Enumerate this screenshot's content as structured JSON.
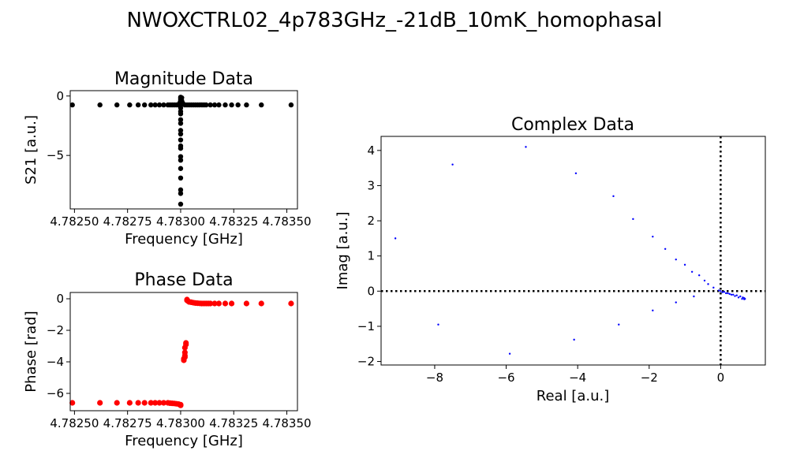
{
  "figure": {
    "title": "NWOXCTRL02_4p783GHz_-21dB_10mK_homophasal"
  },
  "chart_data": [
    {
      "id": "magnitude",
      "type": "scatter",
      "title": "Magnitude Data",
      "xlabel": "Frequency [GHz]",
      "ylabel": "S21 [a.u.]",
      "xlim": [
        4.78248,
        4.78355
      ],
      "ylim": [
        -9.5,
        0.45
      ],
      "xticks": [
        4.7825,
        4.78275,
        4.783,
        4.78325,
        4.7835
      ],
      "xtick_labels": [
        "4.78250",
        "4.78275",
        "4.78300",
        "4.78325",
        "4.78350"
      ],
      "yticks": [
        0,
        -5
      ],
      "ytick_labels": [
        "0",
        "−5"
      ],
      "color": "#000000",
      "grid": false,
      "series": [
        {
          "points": [
            [
              4.78249,
              -0.75
            ],
            [
              4.78262,
              -0.75
            ],
            [
              4.7827,
              -0.75
            ],
            [
              4.78276,
              -0.75
            ],
            [
              4.7828,
              -0.75
            ],
            [
              4.78283,
              -0.75
            ],
            [
              4.78286,
              -0.75
            ],
            [
              4.78288,
              -0.75
            ],
            [
              4.7829,
              -0.75
            ],
            [
              4.78292,
              -0.75
            ],
            [
              4.78294,
              -0.75
            ],
            [
              4.78295,
              -0.75
            ],
            [
              4.78296,
              -0.75
            ],
            [
              4.78297,
              -0.75
            ],
            [
              4.78298,
              -0.75
            ],
            [
              4.78299,
              -0.75
            ],
            [
              4.782995,
              -0.6
            ],
            [
              4.783,
              -0.4
            ],
            [
              4.783,
              -0.1
            ],
            [
              4.783,
              -0.2
            ],
            [
              4.783,
              -0.3
            ],
            [
              4.783,
              -0.5
            ],
            [
              4.783,
              -0.8
            ],
            [
              4.783,
              -1.0
            ],
            [
              4.783,
              -1.3
            ],
            [
              4.783,
              -1.5
            ],
            [
              4.783,
              -2.0
            ],
            [
              4.783,
              -2.3
            ],
            [
              4.783,
              -2.9
            ],
            [
              4.783,
              -3.2
            ],
            [
              4.783,
              -3.7
            ],
            [
              4.783,
              -4.2
            ],
            [
              4.783,
              -4.4
            ],
            [
              4.783,
              -5.1
            ],
            [
              4.783,
              -5.4
            ],
            [
              4.783,
              -6.1
            ],
            [
              4.783,
              -6.9
            ],
            [
              4.783,
              -7.9
            ],
            [
              4.783,
              -8.2
            ],
            [
              4.783,
              -9.1
            ],
            [
              4.783005,
              -0.15
            ],
            [
              4.783005,
              -0.4
            ],
            [
              4.78301,
              -0.6
            ],
            [
              4.78302,
              -0.75
            ],
            [
              4.78303,
              -0.75
            ],
            [
              4.78304,
              -0.75
            ],
            [
              4.78305,
              -0.75
            ],
            [
              4.78306,
              -0.75
            ],
            [
              4.78307,
              -0.75
            ],
            [
              4.78308,
              -0.75
            ],
            [
              4.78309,
              -0.75
            ],
            [
              4.7831,
              -0.75
            ],
            [
              4.78311,
              -0.75
            ],
            [
              4.78312,
              -0.75
            ],
            [
              4.78314,
              -0.75
            ],
            [
              4.78316,
              -0.75
            ],
            [
              4.78318,
              -0.75
            ],
            [
              4.78321,
              -0.75
            ],
            [
              4.78324,
              -0.75
            ],
            [
              4.78327,
              -0.75
            ],
            [
              4.78331,
              -0.75
            ],
            [
              4.78338,
              -0.75
            ],
            [
              4.78352,
              -0.75
            ]
          ]
        }
      ]
    },
    {
      "id": "phase",
      "type": "scatter",
      "title": "Phase Data",
      "xlabel": "Frequency [GHz]",
      "ylabel": "Phase [rad]",
      "xlim": [
        4.78248,
        4.78355
      ],
      "ylim": [
        -7.1,
        0.4
      ],
      "xticks": [
        4.7825,
        4.78275,
        4.783,
        4.78325,
        4.7835
      ],
      "xtick_labels": [
        "4.78250",
        "4.78275",
        "4.78300",
        "4.78325",
        "4.78350"
      ],
      "yticks": [
        0,
        -2,
        -4,
        -6
      ],
      "ytick_labels": [
        "0",
        "−2",
        "−4",
        "−6"
      ],
      "color": "#ff0000",
      "grid": false,
      "series": [
        {
          "points": [
            [
              4.78249,
              -6.6
            ],
            [
              4.78262,
              -6.6
            ],
            [
              4.7827,
              -6.6
            ],
            [
              4.78276,
              -6.6
            ],
            [
              4.7828,
              -6.6
            ],
            [
              4.78283,
              -6.6
            ],
            [
              4.78286,
              -6.6
            ],
            [
              4.78288,
              -6.6
            ],
            [
              4.7829,
              -6.6
            ],
            [
              4.78292,
              -6.6
            ],
            [
              4.78294,
              -6.6
            ],
            [
              4.78295,
              -6.62
            ],
            [
              4.78296,
              -6.63
            ],
            [
              4.78297,
              -6.64
            ],
            [
              4.78298,
              -6.66
            ],
            [
              4.78299,
              -6.68
            ],
            [
              4.783,
              -6.72
            ],
            [
              4.783,
              -6.76
            ],
            [
              4.783015,
              -3.9
            ],
            [
              4.783015,
              -3.8
            ],
            [
              4.78302,
              -3.7
            ],
            [
              4.78302,
              -3.6
            ],
            [
              4.78302,
              -3.4
            ],
            [
              4.78302,
              -3.1
            ],
            [
              4.783025,
              -2.9
            ],
            [
              4.783025,
              -2.8
            ],
            [
              4.78303,
              -0.05
            ],
            [
              4.78303,
              -0.1
            ],
            [
              4.783035,
              -0.15
            ],
            [
              4.78304,
              -0.2
            ],
            [
              4.78305,
              -0.22
            ],
            [
              4.78306,
              -0.25
            ],
            [
              4.78307,
              -0.27
            ],
            [
              4.78308,
              -0.28
            ],
            [
              4.78309,
              -0.29
            ],
            [
              4.7831,
              -0.3
            ],
            [
              4.78311,
              -0.3
            ],
            [
              4.78312,
              -0.3
            ],
            [
              4.78313,
              -0.3
            ],
            [
              4.78314,
              -0.3
            ],
            [
              4.78316,
              -0.3
            ],
            [
              4.78318,
              -0.3
            ],
            [
              4.78321,
              -0.3
            ],
            [
              4.78324,
              -0.3
            ],
            [
              4.78331,
              -0.3
            ],
            [
              4.78338,
              -0.3
            ],
            [
              4.78352,
              -0.3
            ]
          ]
        }
      ]
    },
    {
      "id": "complex",
      "type": "scatter",
      "title": "Complex Data",
      "xlabel": "Real [a.u.]",
      "ylabel": "Imag [a.u.]",
      "xlim": [
        -9.5,
        1.25
      ],
      "ylim": [
        -2.1,
        4.4
      ],
      "xticks": [
        -8,
        -6,
        -4,
        -2,
        0
      ],
      "xtick_labels": [
        "−8",
        "−6",
        "−4",
        "−2",
        "0"
      ],
      "yticks": [
        4,
        3,
        2,
        1,
        0,
        -1,
        -2
      ],
      "ytick_labels": [
        "4",
        "3",
        "2",
        "1",
        "0",
        "−1",
        "−2"
      ],
      "color": "#0000ff",
      "grid": false,
      "reference_lines": {
        "x": 0,
        "y": 0,
        "style": "dotted"
      },
      "series": [
        {
          "points": [
            [
              -9.1,
              1.5
            ],
            [
              -7.9,
              -0.95
            ],
            [
              -7.5,
              3.6
            ],
            [
              -5.9,
              -1.78
            ],
            [
              -5.45,
              4.1
            ],
            [
              -4.05,
              3.35
            ],
            [
              -4.1,
              -1.38
            ],
            [
              -3.0,
              2.7
            ],
            [
              -2.85,
              -0.95
            ],
            [
              -2.45,
              2.05
            ],
            [
              -1.9,
              1.55
            ],
            [
              -1.9,
              -0.55
            ],
            [
              -1.55,
              1.2
            ],
            [
              -1.25,
              0.9
            ],
            [
              -1.25,
              -0.32
            ],
            [
              -1.0,
              0.75
            ],
            [
              -0.8,
              0.55
            ],
            [
              -0.75,
              -0.15
            ],
            [
              -0.6,
              0.45
            ],
            [
              -0.45,
              0.3
            ],
            [
              -0.35,
              0.2
            ],
            [
              -0.2,
              0.1
            ],
            [
              -0.05,
              0.02
            ],
            [
              0.05,
              -0.03
            ],
            [
              0.15,
              -0.06
            ],
            [
              0.25,
              -0.08
            ],
            [
              0.35,
              -0.1
            ],
            [
              0.45,
              -0.12
            ],
            [
              0.55,
              -0.15
            ],
            [
              0.62,
              -0.18
            ],
            [
              0.66,
              -0.2
            ],
            [
              0.68,
              -0.22
            ],
            [
              0.66,
              -0.23
            ],
            [
              0.6,
              -0.22
            ],
            [
              0.5,
              -0.18
            ],
            [
              0.4,
              -0.14
            ],
            [
              0.3,
              -0.1
            ],
            [
              0.2,
              -0.06
            ],
            [
              0.1,
              -0.02
            ],
            [
              0.0,
              0.0
            ]
          ]
        }
      ]
    }
  ]
}
